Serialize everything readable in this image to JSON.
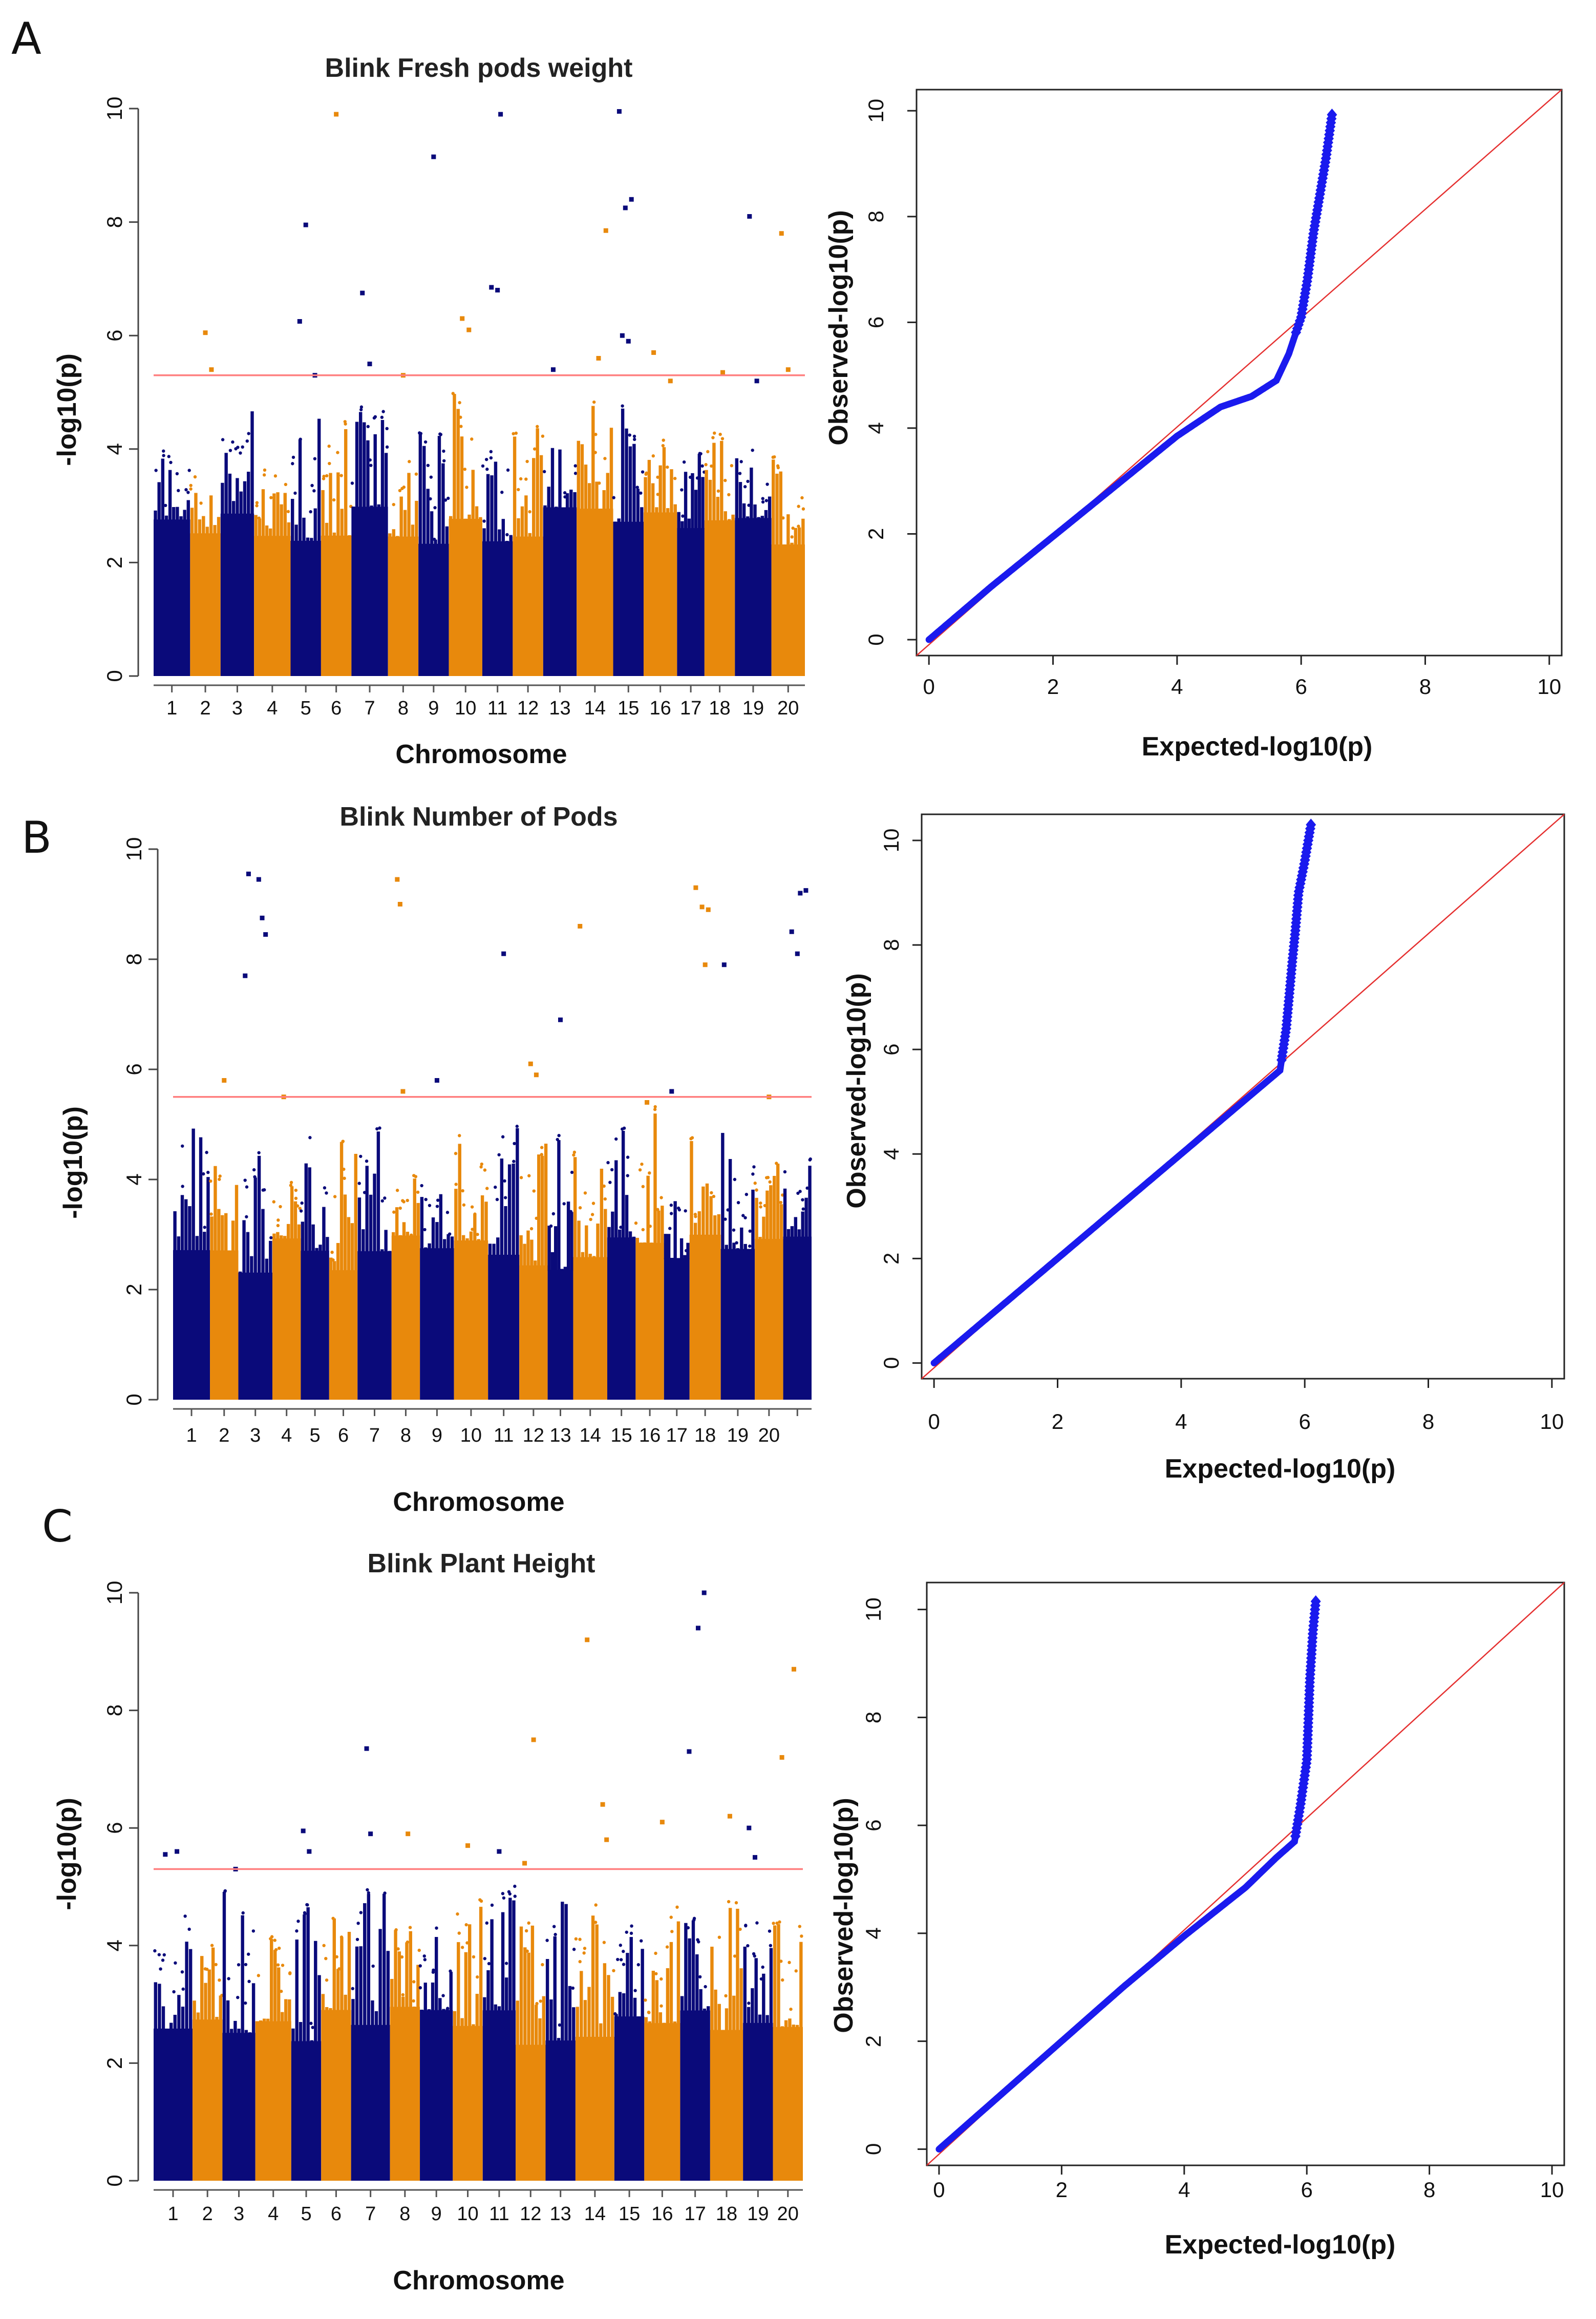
{
  "figure": {
    "panel_labels": [
      "A",
      "B",
      "C"
    ]
  },
  "colors": {
    "chrom_odd": "#0a0a7a",
    "chrom_even": "#e8890c",
    "threshold": "#ff7f7f",
    "qq_points": "#1a1aee",
    "qq_diagonal": "#e53030"
  },
  "chart_data": [
    {
      "panel": "A",
      "type": "scatter",
      "kind": "manhattan",
      "title": "Blink Fresh pods weight",
      "xlabel": "Chromosome",
      "ylabel": "-log10(p)",
      "ylim": [
        0,
        10
      ],
      "yticks": [
        0,
        2,
        4,
        6,
        8,
        10
      ],
      "threshold": 5.3,
      "chromosome_labels": [
        "1",
        "2",
        "3",
        "4",
        "5",
        "6",
        "7",
        "8",
        "9",
        "10",
        "11",
        "12",
        "13",
        "14",
        "15",
        "16",
        "17",
        "18",
        "19",
        "20"
      ],
      "chromosome_widths": [
        1.2,
        1.0,
        1.1,
        1.2,
        1.0,
        1.0,
        1.2,
        1.0,
        1.0,
        1.1,
        1.0,
        1.0,
        1.1,
        1.2,
        1.0,
        1.1,
        0.9,
        1.0,
        1.2,
        1.1
      ],
      "background_max": [
        4.1,
        3.9,
        4.9,
        4.0,
        4.6,
        4.6,
        4.8,
        4.1,
        4.3,
        5.0,
        4.6,
        4.5,
        4.4,
        4.9,
        4.8,
        4.3,
        4.0,
        4.4,
        4.2,
        3.9
      ],
      "hits": [
        {
          "chr": 2,
          "pos": 0.5,
          "y": 6.05
        },
        {
          "chr": 2,
          "pos": 0.7,
          "y": 5.4
        },
        {
          "chr": 5,
          "pos": 0.3,
          "y": 6.25
        },
        {
          "chr": 5,
          "pos": 0.5,
          "y": 7.95
        },
        {
          "chr": 5,
          "pos": 0.8,
          "y": 5.3
        },
        {
          "chr": 6,
          "pos": 0.5,
          "y": 9.9
        },
        {
          "chr": 7,
          "pos": 0.3,
          "y": 6.75
        },
        {
          "chr": 7,
          "pos": 0.5,
          "y": 5.5
        },
        {
          "chr": 8,
          "pos": 0.5,
          "y": 5.3
        },
        {
          "chr": 9,
          "pos": 0.5,
          "y": 9.15
        },
        {
          "chr": 10,
          "pos": 0.4,
          "y": 6.3
        },
        {
          "chr": 10,
          "pos": 0.6,
          "y": 6.1
        },
        {
          "chr": 11,
          "pos": 0.3,
          "y": 6.85
        },
        {
          "chr": 11,
          "pos": 0.5,
          "y": 6.8
        },
        {
          "chr": 11,
          "pos": 0.6,
          "y": 9.9
        },
        {
          "chr": 13,
          "pos": 0.3,
          "y": 5.4
        },
        {
          "chr": 14,
          "pos": 0.6,
          "y": 5.6
        },
        {
          "chr": 14,
          "pos": 0.8,
          "y": 7.85
        },
        {
          "chr": 15,
          "pos": 0.2,
          "y": 9.95
        },
        {
          "chr": 15,
          "pos": 0.4,
          "y": 8.25
        },
        {
          "chr": 15,
          "pos": 0.6,
          "y": 8.4
        },
        {
          "chr": 15,
          "pos": 0.3,
          "y": 6.0
        },
        {
          "chr": 15,
          "pos": 0.5,
          "y": 5.9
        },
        {
          "chr": 16,
          "pos": 0.3,
          "y": 5.7
        },
        {
          "chr": 16,
          "pos": 0.8,
          "y": 5.2
        },
        {
          "chr": 18,
          "pos": 0.6,
          "y": 5.35
        },
        {
          "chr": 19,
          "pos": 0.4,
          "y": 8.1
        },
        {
          "chr": 19,
          "pos": 0.6,
          "y": 5.2
        },
        {
          "chr": 20,
          "pos": 0.3,
          "y": 7.8
        },
        {
          "chr": 20,
          "pos": 0.5,
          "y": 5.4
        }
      ]
    },
    {
      "panel": "A",
      "type": "scatter",
      "kind": "qq",
      "xlabel": "Expected-log10(p)",
      "ylabel": "Observed-log10(p)",
      "xlim": [
        -0.2,
        10.2
      ],
      "ylim": [
        -0.3,
        10.4
      ],
      "xticks": [
        0,
        2,
        4,
        6,
        8,
        10
      ],
      "yticks": [
        0,
        2,
        4,
        6,
        8,
        10
      ],
      "curve": [
        [
          0,
          0
        ],
        [
          1,
          1.0
        ],
        [
          2,
          1.95
        ],
        [
          3,
          2.9
        ],
        [
          4,
          3.85
        ],
        [
          4.7,
          4.4
        ],
        [
          5.2,
          4.6
        ],
        [
          5.6,
          4.9
        ],
        [
          5.8,
          5.4
        ],
        [
          6.0,
          6.1
        ],
        [
          6.1,
          6.8
        ],
        [
          6.2,
          7.7
        ],
        [
          6.3,
          8.4
        ],
        [
          6.4,
          9.1
        ],
        [
          6.5,
          9.95
        ]
      ]
    },
    {
      "panel": "B",
      "type": "scatter",
      "kind": "manhattan",
      "title": "Blink Number of Pods",
      "xlabel": "Chromosome",
      "ylabel": "-log10(p)",
      "ylim": [
        0,
        10
      ],
      "yticks": [
        0,
        2,
        4,
        6,
        8,
        10
      ],
      "threshold": 5.5,
      "chromosome_labels": [
        "1",
        "2",
        "3",
        "4",
        "5",
        "6",
        "7",
        "8",
        "9",
        "10",
        "11",
        "12",
        "13",
        "14",
        "15",
        "16",
        "17",
        "18",
        "19",
        "20",
        ""
      ],
      "chromosome_widths": [
        1.3,
        1.0,
        1.2,
        1.0,
        1.0,
        1.0,
        1.2,
        1.0,
        1.2,
        1.2,
        1.1,
        1.0,
        0.9,
        1.2,
        1.0,
        1.0,
        0.9,
        1.1,
        1.2,
        1.0,
        1.0
      ],
      "background_max": [
        5.3,
        4.8,
        4.9,
        4.0,
        5.2,
        4.7,
        5.0,
        4.2,
        4.3,
        5.0,
        5.6,
        4.8,
        4.9,
        4.6,
        5.2,
        5.5,
        4.2,
        4.8,
        5.0,
        4.3,
        4.5
      ],
      "hits": [
        {
          "chr": 2,
          "pos": 0.5,
          "y": 5.8
        },
        {
          "chr": 3,
          "pos": 0.2,
          "y": 7.7
        },
        {
          "chr": 3,
          "pos": 0.3,
          "y": 9.55
        },
        {
          "chr": 3,
          "pos": 0.6,
          "y": 9.45
        },
        {
          "chr": 3,
          "pos": 0.7,
          "y": 8.75
        },
        {
          "chr": 3,
          "pos": 0.8,
          "y": 8.45
        },
        {
          "chr": 4,
          "pos": 0.4,
          "y": 5.5
        },
        {
          "chr": 8,
          "pos": 0.2,
          "y": 9.45
        },
        {
          "chr": 8,
          "pos": 0.3,
          "y": 9.0
        },
        {
          "chr": 8,
          "pos": 0.4,
          "y": 5.6
        },
        {
          "chr": 9,
          "pos": 0.5,
          "y": 5.8
        },
        {
          "chr": 11,
          "pos": 0.5,
          "y": 8.1
        },
        {
          "chr": 12,
          "pos": 0.4,
          "y": 6.1
        },
        {
          "chr": 12,
          "pos": 0.6,
          "y": 5.9
        },
        {
          "chr": 13,
          "pos": 0.5,
          "y": 6.9
        },
        {
          "chr": 14,
          "pos": 0.2,
          "y": 8.6
        },
        {
          "chr": 16,
          "pos": 0.4,
          "y": 5.4
        },
        {
          "chr": 17,
          "pos": 0.3,
          "y": 5.6
        },
        {
          "chr": 18,
          "pos": 0.2,
          "y": 9.3
        },
        {
          "chr": 18,
          "pos": 0.4,
          "y": 8.95
        },
        {
          "chr": 18,
          "pos": 0.6,
          "y": 8.9
        },
        {
          "chr": 18,
          "pos": 0.5,
          "y": 7.9
        },
        {
          "chr": 19,
          "pos": 0.1,
          "y": 7.9
        },
        {
          "chr": 20,
          "pos": 0.5,
          "y": 5.5
        },
        {
          "chr": 21,
          "pos": 0.3,
          "y": 8.5
        },
        {
          "chr": 21,
          "pos": 0.5,
          "y": 8.1
        },
        {
          "chr": 21,
          "pos": 0.6,
          "y": 9.2
        },
        {
          "chr": 21,
          "pos": 0.8,
          "y": 9.25
        }
      ]
    },
    {
      "panel": "B",
      "type": "scatter",
      "kind": "qq",
      "xlabel": "Expected-log10(p)",
      "ylabel": "Observed-log10(p)",
      "xlim": [
        -0.2,
        10.2
      ],
      "ylim": [
        -0.3,
        10.5
      ],
      "xticks": [
        0,
        2,
        4,
        6,
        8,
        10
      ],
      "yticks": [
        0,
        2,
        4,
        6,
        8,
        10
      ],
      "curve": [
        [
          0,
          0
        ],
        [
          1,
          1.0
        ],
        [
          2,
          2.0
        ],
        [
          3,
          3.0
        ],
        [
          4,
          4.0
        ],
        [
          4.8,
          4.8
        ],
        [
          5.3,
          5.3
        ],
        [
          5.6,
          5.6
        ],
        [
          5.7,
          6.4
        ],
        [
          5.8,
          7.7
        ],
        [
          5.85,
          8.3
        ],
        [
          5.9,
          9.0
        ],
        [
          6.0,
          9.6
        ],
        [
          6.1,
          10.3
        ]
      ]
    },
    {
      "panel": "C",
      "type": "scatter",
      "kind": "manhattan",
      "title": "Blink Plant Height",
      "xlabel": "Chromosome",
      "ylabel": "-log10(p)",
      "ylim": [
        0,
        10
      ],
      "yticks": [
        0,
        2,
        4,
        6,
        8,
        10
      ],
      "threshold": 5.3,
      "chromosome_labels": [
        "1",
        "2",
        "3",
        "4",
        "5",
        "6",
        "7",
        "8",
        "9",
        "10",
        "11",
        "12",
        "13",
        "14",
        "15",
        "16",
        "17",
        "18",
        "19",
        "20"
      ],
      "chromosome_widths": [
        1.3,
        1.0,
        1.1,
        1.2,
        1.0,
        1.0,
        1.3,
        1.0,
        1.1,
        1.0,
        1.1,
        1.0,
        1.0,
        1.3,
        1.0,
        1.2,
        1.0,
        1.1,
        1.0,
        1.0
      ],
      "background_max": [
        4.8,
        4.5,
        5.0,
        4.2,
        4.8,
        4.6,
        5.0,
        4.4,
        4.6,
        4.9,
        5.2,
        4.9,
        4.8,
        5.0,
        4.7,
        4.9,
        4.5,
        4.9,
        4.8,
        4.5
      ],
      "hits": [
        {
          "chr": 1,
          "pos": 0.3,
          "y": 5.55
        },
        {
          "chr": 1,
          "pos": 0.6,
          "y": 5.6
        },
        {
          "chr": 3,
          "pos": 0.4,
          "y": 5.3
        },
        {
          "chr": 5,
          "pos": 0.4,
          "y": 5.95
        },
        {
          "chr": 5,
          "pos": 0.6,
          "y": 5.6
        },
        {
          "chr": 7,
          "pos": 0.4,
          "y": 7.35
        },
        {
          "chr": 7,
          "pos": 0.5,
          "y": 5.9
        },
        {
          "chr": 8,
          "pos": 0.6,
          "y": 5.9
        },
        {
          "chr": 10,
          "pos": 0.5,
          "y": 5.7
        },
        {
          "chr": 11,
          "pos": 0.5,
          "y": 5.6
        },
        {
          "chr": 12,
          "pos": 0.3,
          "y": 5.4
        },
        {
          "chr": 12,
          "pos": 0.6,
          "y": 7.5
        },
        {
          "chr": 14,
          "pos": 0.3,
          "y": 9.2
        },
        {
          "chr": 14,
          "pos": 0.7,
          "y": 6.4
        },
        {
          "chr": 14,
          "pos": 0.8,
          "y": 5.8
        },
        {
          "chr": 16,
          "pos": 0.5,
          "y": 6.1
        },
        {
          "chr": 17,
          "pos": 0.3,
          "y": 7.3
        },
        {
          "chr": 17,
          "pos": 0.6,
          "y": 9.4
        },
        {
          "chr": 17,
          "pos": 0.8,
          "y": 10.0
        },
        {
          "chr": 18,
          "pos": 0.6,
          "y": 6.2
        },
        {
          "chr": 19,
          "pos": 0.2,
          "y": 6.0
        },
        {
          "chr": 19,
          "pos": 0.4,
          "y": 5.5
        },
        {
          "chr": 20,
          "pos": 0.3,
          "y": 7.2
        },
        {
          "chr": 20,
          "pos": 0.7,
          "y": 8.7
        }
      ]
    },
    {
      "panel": "C",
      "type": "scatter",
      "kind": "qq",
      "xlabel": "Expected-log10(p)",
      "ylabel": "Observed-log10(p)",
      "xlim": [
        -0.2,
        10.2
      ],
      "ylim": [
        -0.3,
        10.5
      ],
      "xticks": [
        0,
        2,
        4,
        6,
        8,
        10
      ],
      "yticks": [
        0,
        2,
        4,
        6,
        8,
        10
      ],
      "curve": [
        [
          0,
          0
        ],
        [
          1,
          1.0
        ],
        [
          2,
          2.0
        ],
        [
          3,
          3.0
        ],
        [
          4,
          3.95
        ],
        [
          5,
          4.85
        ],
        [
          5.5,
          5.4
        ],
        [
          5.8,
          5.7
        ],
        [
          5.9,
          6.4
        ],
        [
          6.0,
          7.2
        ],
        [
          6.05,
          8.7
        ],
        [
          6.1,
          9.6
        ],
        [
          6.15,
          10.2
        ]
      ]
    }
  ]
}
